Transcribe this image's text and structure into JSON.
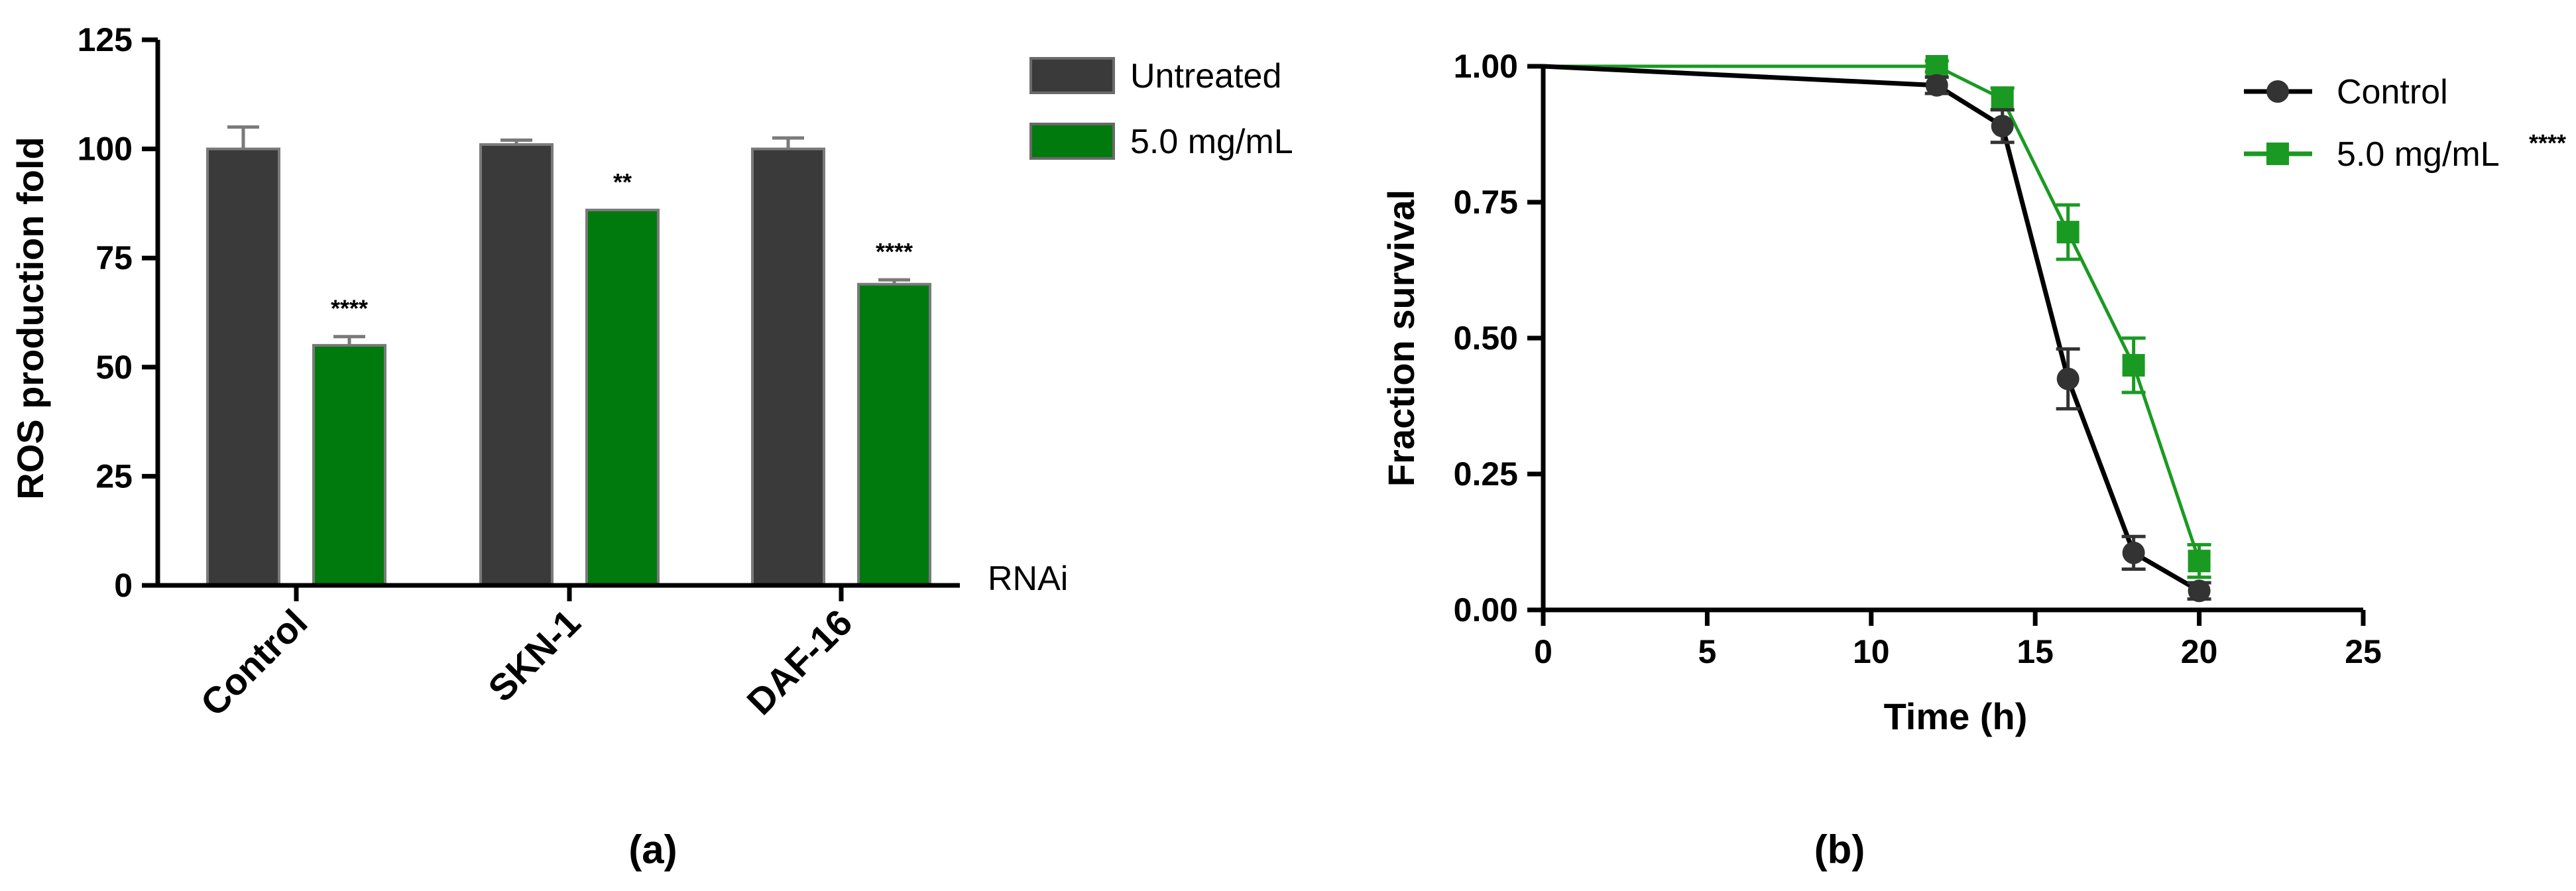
{
  "colors": {
    "untreated": "#3a3a3a",
    "treated": "#007a0c",
    "control_line": "#000000",
    "treated_line": "#1a9a22",
    "marker_control": "#333333"
  },
  "chart_data": [
    {
      "type": "bar",
      "panel_label": "(a)",
      "ylabel": "ROS production fold",
      "xlabel": "RNAi",
      "ylim": [
        0,
        125
      ],
      "yticks": [
        "0",
        "25",
        "50",
        "75",
        "100",
        "125"
      ],
      "categories": [
        "Control",
        "SKN-1",
        "DAF-16"
      ],
      "series": [
        {
          "name": "Untreated",
          "values": [
            100,
            101,
            100
          ],
          "errors": [
            5,
            1,
            2.5
          ]
        },
        {
          "name": "5.0 mg/mL",
          "values": [
            55,
            86,
            69
          ],
          "errors": [
            2,
            0,
            1
          ],
          "annotations": [
            "****",
            "**",
            "****"
          ]
        }
      ],
      "legend": [
        "Untreated",
        "5.0 mg/mL"
      ],
      "legend_position": "top-right"
    },
    {
      "type": "line",
      "panel_label": "(b)",
      "xlabel": "Time (h)",
      "ylabel": "Fraction survival",
      "xlim": [
        0,
        25
      ],
      "ylim": [
        0,
        1
      ],
      "xticks": [
        "0",
        "5",
        "10",
        "15",
        "20",
        "25"
      ],
      "yticks": [
        "0.00",
        "0.25",
        "0.50",
        "0.75",
        "1.00"
      ],
      "series": [
        {
          "name": "Control",
          "marker": "circle",
          "x": [
            0,
            12,
            14,
            16,
            18,
            20
          ],
          "y": [
            1.0,
            0.965,
            0.89,
            0.425,
            0.105,
            0.035
          ],
          "errors": [
            0,
            0.015,
            0.03,
            0.055,
            0.03,
            0.015
          ]
        },
        {
          "name": "5.0 mg/mL",
          "marker": "square",
          "x": [
            0,
            12,
            14,
            16,
            18,
            20
          ],
          "y": [
            1.0,
            1.0,
            0.94,
            0.695,
            0.45,
            0.09
          ],
          "errors": [
            0,
            0.01,
            0.02,
            0.05,
            0.05,
            0.03
          ],
          "significance": "****"
        }
      ],
      "legend": [
        "Control",
        "5.0 mg/mL",
        "****"
      ],
      "legend_position": "top-right"
    }
  ]
}
